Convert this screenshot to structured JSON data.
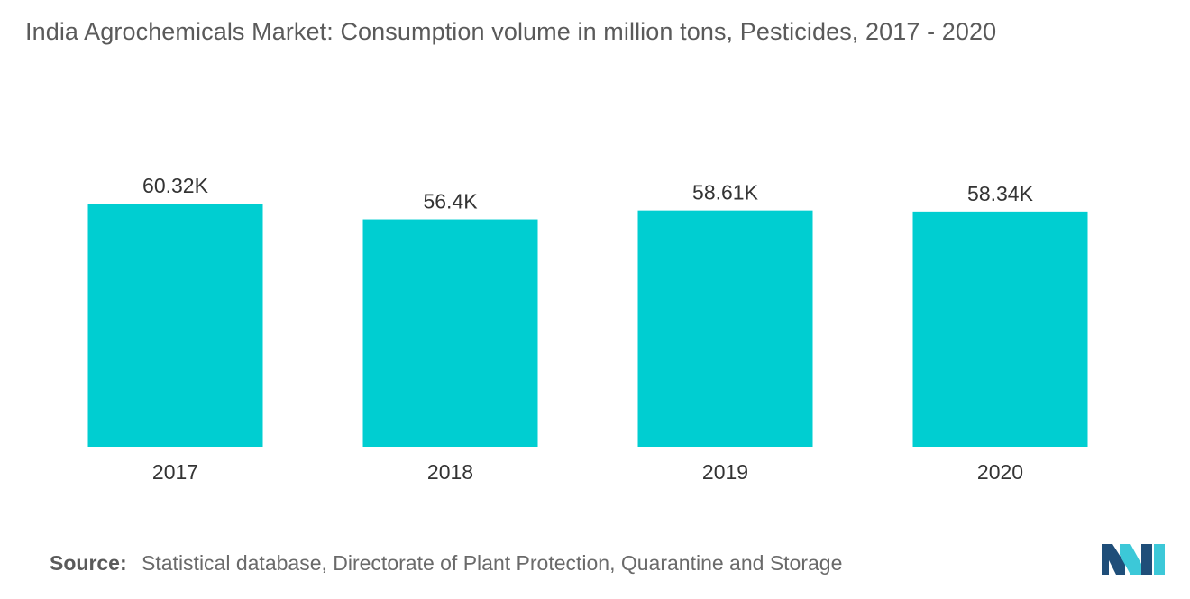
{
  "chart_data": {
    "type": "bar",
    "title": "India Agrochemicals Market: Consumption volume in million tons, Pesticides, 2017 - 2020",
    "categories": [
      "2017",
      "2018",
      "2019",
      "2020"
    ],
    "values": [
      60.32,
      56.4,
      58.61,
      58.34
    ],
    "value_labels": [
      "60.32K",
      "56.4K",
      "58.61K",
      "58.34K"
    ],
    "xlabel": "",
    "ylabel": "",
    "ylim": [
      0,
      60.32
    ],
    "grid": false,
    "bar_color": "#00ced1"
  },
  "source": {
    "label": "Source:",
    "text": "Statistical database, Directorate of Plant Protection, Quarantine and Storage"
  },
  "logo": {
    "icon": "mordor-intelligence-logo-icon",
    "color_dark": "#1f4e79",
    "color_light": "#3cc8d8"
  }
}
